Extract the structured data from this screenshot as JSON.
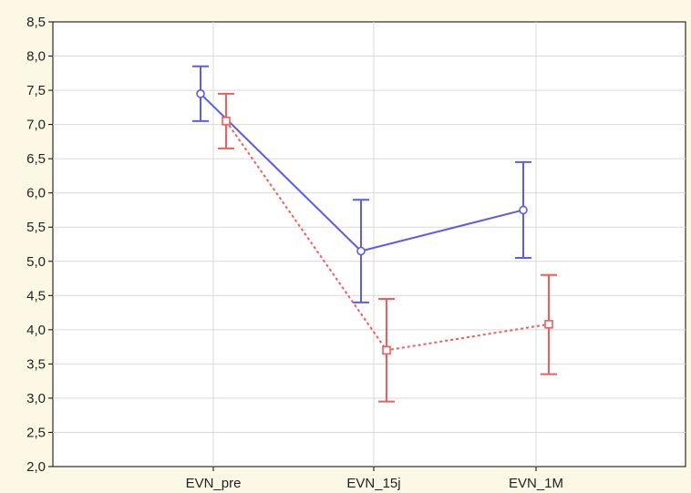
{
  "chart_data": {
    "type": "line",
    "title": "",
    "xlabel": "",
    "ylabel": "",
    "categories": [
      "EVN_pre",
      "EVN_15j",
      "EVN_1M"
    ],
    "ylim": [
      2.0,
      8.5
    ],
    "yticks": [
      2.0,
      2.5,
      3.0,
      3.5,
      4.0,
      4.5,
      5.0,
      5.5,
      6.0,
      6.5,
      7.0,
      7.5,
      8.0,
      8.5
    ],
    "ytick_labels": [
      "2,0",
      "2,5",
      "3,0",
      "3,5",
      "4,0",
      "4,5",
      "5,0",
      "5,5",
      "6,0",
      "6,5",
      "7,0",
      "7,5",
      "8,0",
      "8,5"
    ],
    "grid": true,
    "series": [
      {
        "color": "#5b5bf0",
        "line_style": "solid",
        "marker": "circle",
        "values": [
          7.45,
          5.15,
          5.75
        ],
        "error_low": [
          7.05,
          4.4,
          5.05
        ],
        "error_high": [
          7.85,
          5.9,
          6.45
        ]
      },
      {
        "color": "#f05b5b",
        "line_style": "dotted",
        "marker": "square",
        "values": [
          7.05,
          3.7,
          4.08
        ],
        "error_low": [
          6.65,
          2.95,
          3.35
        ],
        "error_high": [
          7.45,
          4.45,
          4.8
        ]
      }
    ]
  }
}
